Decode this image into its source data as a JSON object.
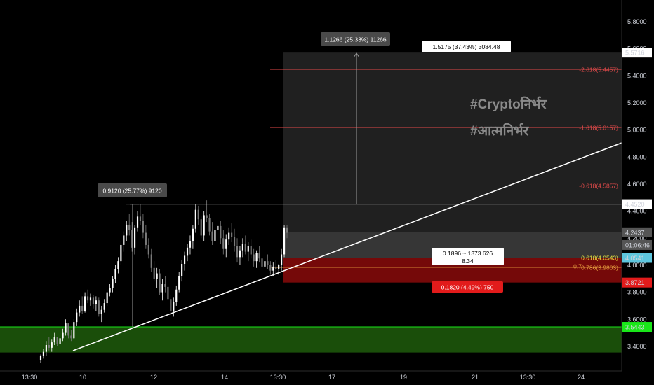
{
  "chart_data": {
    "type": "candlestick",
    "title": "",
    "price_axis": {
      "ticks": [
        "5.8000",
        "5.6000",
        "5.4000",
        "5.2000",
        "5.0000",
        "4.8000",
        "4.6000",
        "4.4000",
        "4.2000",
        "4.0000",
        "3.8000",
        "3.6000",
        "3.4000"
      ],
      "ylim": [
        3.3,
        5.9
      ]
    },
    "time_axis": {
      "ticks": [
        "13:30",
        "10",
        "12",
        "14",
        "13:30",
        "17",
        "19",
        "21",
        "13:30",
        "24"
      ]
    },
    "price_labels": [
      {
        "name": "price-label-5-5716",
        "text": "5.5716",
        "price": 5.5716,
        "bg": "#ffffff",
        "fg": "#000000"
      },
      {
        "name": "price-label-4-4520",
        "text": "4.4520",
        "price": 4.452,
        "bg": "#ffffff",
        "fg": "#000000"
      },
      {
        "name": "price-label-4-2437",
        "text": "4.2437",
        "price": 4.2437,
        "bg": "#555555",
        "fg": "#d1d4dc"
      },
      {
        "name": "price-label-countdown",
        "text": "01:06:46",
        "price": 4.15,
        "bg": "#555555",
        "fg": "#d1d4dc"
      },
      {
        "name": "price-label-4-0541",
        "text": "4.0541",
        "price": 4.0541,
        "bg": "#5ec6de",
        "fg": "#000000"
      },
      {
        "name": "price-label-3-8721",
        "text": "3.8721",
        "price": 3.8721,
        "bg": "#e21b1b",
        "fg": "#ffffff"
      },
      {
        "name": "price-label-3-5443",
        "text": "3.5443",
        "price": 3.5443,
        "bg": "#19e619",
        "fg": "#000000"
      }
    ],
    "horizontal_levels": [
      {
        "name": "resistance-line",
        "price": 4.452,
        "color": "#ffffff"
      },
      {
        "name": "support-zone-top",
        "price": 3.5443,
        "color": "#19e619"
      }
    ],
    "support_zone": {
      "top": 3.5443,
      "bottom": 3.355,
      "color": "#1f5c0c",
      "border": "#19e619"
    },
    "trendline": {
      "from": {
        "x": "Oct 9 18:00",
        "y": 3.38
      },
      "to": {
        "x": "Oct 23 23:00",
        "y": 4.9
      }
    },
    "fib_levels": [
      {
        "label": "-2.618(5.4457)",
        "price": 5.4457,
        "color": "#e04a4a"
      },
      {
        "label": "-1.618(5.0157)",
        "price": 5.0157,
        "color": "#e04a4a"
      },
      {
        "label": "-0.618(4.5857)",
        "price": 4.5857,
        "color": "#e04a4a"
      },
      {
        "label": "0.618(4.0543)",
        "price": 4.0543,
        "color": "#e8e040"
      },
      {
        "label": "0.786(3.9803)",
        "price": 3.9803,
        "color": "#e8a040"
      }
    ],
    "fib_bottom_label": "0.7",
    "measure_tags": {
      "pole": "0.9120 (25.77%) 9120",
      "projection": "1.1266 (25.33%) 11266",
      "target": "1.5175 (37.43%) 3084.48",
      "risk": "0.1820 (4.49%) 750",
      "ratio_line1": "0.1896 ~ 1373.626",
      "ratio_line2": "8.34"
    },
    "watermarks": [
      "#Cryptoनिर्भर",
      "#आत्मनिर्भर"
    ],
    "candles": [
      [
        3.3,
        3.34,
        3.28,
        3.33
      ],
      [
        3.33,
        3.38,
        3.31,
        3.36
      ],
      [
        3.36,
        3.44,
        3.33,
        3.41
      ],
      [
        3.41,
        3.47,
        3.37,
        3.39
      ],
      [
        3.39,
        3.45,
        3.36,
        3.43
      ],
      [
        3.43,
        3.5,
        3.41,
        3.47
      ],
      [
        3.47,
        3.46,
        3.4,
        3.42
      ],
      [
        3.42,
        3.48,
        3.4,
        3.46
      ],
      [
        3.46,
        3.53,
        3.44,
        3.5
      ],
      [
        3.5,
        3.6,
        3.48,
        3.57
      ],
      [
        3.57,
        3.56,
        3.46,
        3.48
      ],
      [
        3.48,
        3.52,
        3.44,
        3.46
      ],
      [
        3.46,
        3.6,
        3.45,
        3.58
      ],
      [
        3.58,
        3.68,
        3.55,
        3.65
      ],
      [
        3.65,
        3.74,
        3.62,
        3.7
      ],
      [
        3.7,
        3.77,
        3.64,
        3.66
      ],
      [
        3.66,
        3.8,
        3.65,
        3.77
      ],
      [
        3.77,
        3.82,
        3.72,
        3.74
      ],
      [
        3.74,
        3.79,
        3.7,
        3.76
      ],
      [
        3.76,
        3.78,
        3.68,
        3.71
      ],
      [
        3.71,
        3.77,
        3.66,
        3.74
      ],
      [
        3.74,
        3.76,
        3.62,
        3.64
      ],
      [
        3.64,
        3.7,
        3.58,
        3.67
      ],
      [
        3.67,
        3.75,
        3.65,
        3.72
      ],
      [
        3.72,
        3.82,
        3.7,
        3.8
      ],
      [
        3.8,
        3.86,
        3.77,
        3.83
      ],
      [
        3.83,
        3.92,
        3.8,
        3.9
      ],
      [
        3.9,
        4.0,
        3.87,
        3.97
      ],
      [
        3.97,
        4.06,
        3.94,
        4.03
      ],
      [
        4.03,
        4.18,
        4.0,
        4.15
      ],
      [
        4.15,
        4.25,
        4.1,
        4.22
      ],
      [
        4.22,
        4.33,
        4.18,
        4.3
      ],
      [
        4.3,
        4.38,
        4.22,
        4.26
      ],
      [
        4.26,
        4.32,
        4.1,
        4.13
      ],
      [
        4.13,
        4.3,
        4.08,
        4.28
      ],
      [
        4.28,
        4.4,
        4.25,
        4.36
      ],
      [
        4.36,
        4.45,
        4.3,
        4.33
      ],
      [
        4.33,
        4.38,
        4.2,
        4.24
      ],
      [
        4.24,
        4.3,
        4.12,
        4.15
      ],
      [
        4.15,
        4.2,
        4.05,
        4.08
      ],
      [
        4.08,
        4.12,
        3.95,
        3.98
      ],
      [
        3.98,
        4.03,
        3.88,
        3.9
      ],
      [
        3.9,
        3.98,
        3.83,
        3.94
      ],
      [
        3.94,
        3.97,
        3.78,
        3.8
      ],
      [
        3.8,
        3.9,
        3.74,
        3.86
      ],
      [
        3.86,
        3.92,
        3.8,
        3.84
      ],
      [
        3.84,
        3.88,
        3.72,
        3.75
      ],
      [
        3.75,
        3.78,
        3.63,
        3.66
      ],
      [
        3.66,
        3.76,
        3.62,
        3.73
      ],
      [
        3.73,
        3.85,
        3.7,
        3.82
      ],
      [
        3.82,
        3.95,
        3.8,
        3.92
      ],
      [
        3.92,
        4.04,
        3.88,
        4.01
      ],
      [
        4.01,
        4.1,
        3.96,
        4.07
      ],
      [
        4.07,
        4.16,
        4.03,
        4.13
      ],
      [
        4.13,
        4.22,
        4.08,
        4.18
      ],
      [
        4.18,
        4.3,
        4.12,
        4.27
      ],
      [
        4.27,
        4.45,
        4.24,
        4.41
      ],
      [
        4.41,
        4.44,
        4.3,
        4.34
      ],
      [
        4.34,
        4.36,
        4.2,
        4.22
      ],
      [
        4.22,
        4.4,
        4.18,
        4.37
      ],
      [
        4.37,
        4.48,
        4.32,
        4.35
      ],
      [
        4.35,
        4.38,
        4.22,
        4.25
      ],
      [
        4.25,
        4.32,
        4.15,
        4.18
      ],
      [
        4.18,
        4.28,
        4.12,
        4.26
      ],
      [
        4.26,
        4.34,
        4.2,
        4.29
      ],
      [
        4.29,
        4.33,
        4.16,
        4.2
      ],
      [
        4.2,
        4.26,
        4.08,
        4.12
      ],
      [
        4.12,
        4.23,
        4.06,
        4.19
      ],
      [
        4.19,
        4.28,
        4.15,
        4.24
      ],
      [
        4.24,
        4.31,
        4.17,
        4.21
      ],
      [
        4.21,
        4.27,
        4.1,
        4.14
      ],
      [
        4.14,
        4.2,
        4.02,
        4.06
      ],
      [
        4.06,
        4.14,
        4.0,
        4.11
      ],
      [
        4.11,
        4.2,
        4.06,
        4.16
      ],
      [
        4.16,
        4.22,
        4.08,
        4.1
      ],
      [
        4.1,
        4.17,
        4.03,
        4.14
      ],
      [
        4.14,
        4.19,
        4.05,
        4.08
      ],
      [
        4.08,
        4.12,
        3.99,
        4.03
      ],
      [
        4.03,
        4.11,
        3.98,
        4.09
      ],
      [
        4.09,
        4.14,
        4.02,
        4.05
      ],
      [
        4.05,
        4.08,
        3.96,
        3.99
      ],
      [
        3.99,
        4.06,
        3.95,
        4.03
      ],
      [
        4.03,
        4.08,
        3.97,
        4.0
      ],
      [
        4.0,
        4.03,
        3.93,
        3.96
      ],
      [
        3.96,
        4.02,
        3.92,
        3.99
      ],
      [
        3.99,
        4.04,
        3.94,
        3.97
      ],
      [
        3.97,
        4.01,
        3.93,
        4.0
      ],
      [
        4.0,
        4.12,
        3.96,
        4.08
      ],
      [
        4.08,
        4.3,
        4.06,
        4.28
      ],
      [
        4.28,
        4.3,
        4.2,
        4.24
      ]
    ]
  }
}
